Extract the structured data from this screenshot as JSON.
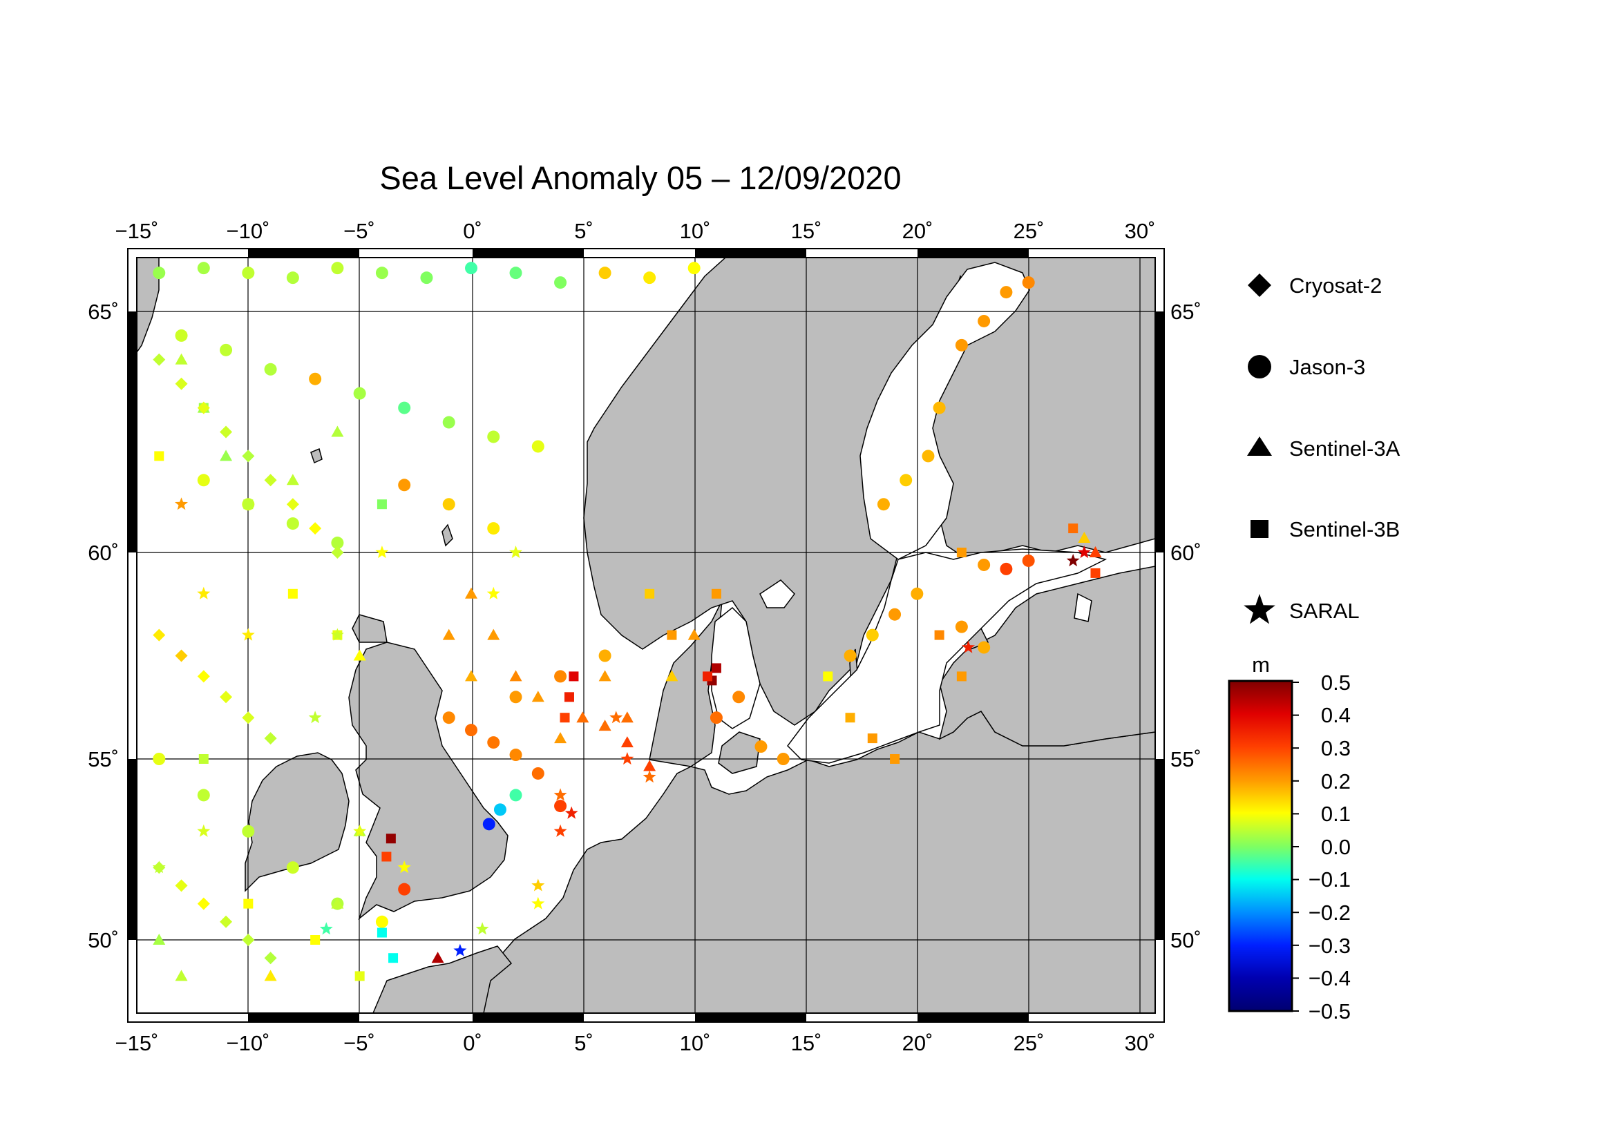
{
  "title": "Sea Level Anomaly 05 – 12/09/2020",
  "axes": {
    "lon_ticks": [
      "−15˚",
      "−10˚",
      "−5˚",
      "0˚",
      "5˚",
      "10˚",
      "15˚",
      "20˚",
      "25˚",
      "30˚"
    ],
    "lat_ticks": [
      "65˚",
      "60˚",
      "55˚",
      "50˚"
    ]
  },
  "legend": {
    "items": [
      {
        "label": "Cryosat-2",
        "symbol": "diamond"
      },
      {
        "label": "Jason-3",
        "symbol": "circle"
      },
      {
        "label": "Sentinel-3A",
        "symbol": "triangle"
      },
      {
        "label": "Sentinel-3B",
        "symbol": "square"
      },
      {
        "label": "SARAL",
        "symbol": "star"
      }
    ]
  },
  "colorbar": {
    "unit": "m",
    "labels": [
      "0.5",
      "0.4",
      "0.3",
      "0.2",
      "0.1",
      "0.0",
      "−0.1",
      "−0.2",
      "−0.3",
      "−0.4",
      "−0.5"
    ],
    "stops": [
      "#800000",
      "#e00000",
      "#ff5000",
      "#ffa000",
      "#ffff00",
      "#80ff80",
      "#00ffff",
      "#0080ff",
      "#0000e0",
      "#000080"
    ]
  },
  "colors": {
    "land": "#bdbdbd",
    "sea": "#ffffff",
    "grid": "#000000"
  },
  "chart_data": {
    "type": "scatter",
    "title": "Sea Level Anomaly 05 – 12/09/2020",
    "lon_range": [
      -15,
      30
    ],
    "lat_range": [
      48.3,
      66.3
    ],
    "value_unit": "m",
    "value_range": [
      -0.5,
      0.5
    ],
    "series": [
      {
        "name": "Jason-3",
        "symbol": "circle",
        "points": [
          [
            -14,
            65.8,
            0.02
          ],
          [
            -12,
            65.9,
            0.03
          ],
          [
            -10,
            65.8,
            0.05
          ],
          [
            -8,
            65.7,
            0.04
          ],
          [
            -6,
            65.9,
            0.05
          ],
          [
            -4,
            65.8,
            0.02
          ],
          [
            -2,
            65.7,
            0.0
          ],
          [
            0,
            65.9,
            -0.05
          ],
          [
            2,
            65.8,
            -0.02
          ],
          [
            4,
            65.6,
            0.0
          ],
          [
            6,
            65.8,
            0.15
          ],
          [
            8,
            65.7,
            0.12
          ],
          [
            10,
            65.9,
            0.1
          ],
          [
            -13,
            64.5,
            0.06
          ],
          [
            -11,
            64.2,
            0.05
          ],
          [
            -9,
            63.8,
            0.04
          ],
          [
            -7,
            63.6,
            0.18
          ],
          [
            -5,
            63.3,
            0.03
          ],
          [
            -3,
            63.0,
            -0.03
          ],
          [
            -1,
            62.7,
            0.02
          ],
          [
            1,
            62.4,
            0.05
          ],
          [
            3,
            62.2,
            0.08
          ],
          [
            -12,
            61.5,
            0.08
          ],
          [
            -10,
            61.0,
            0.06
          ],
          [
            -8,
            60.6,
            0.05
          ],
          [
            -6,
            60.2,
            0.04
          ],
          [
            -3,
            61.4,
            0.2
          ],
          [
            -1,
            61.0,
            0.15
          ],
          [
            1,
            60.5,
            0.12
          ],
          [
            -1,
            56.0,
            0.22
          ],
          [
            0,
            55.7,
            0.25
          ],
          [
            1,
            55.4,
            0.24
          ],
          [
            2,
            55.1,
            0.22
          ],
          [
            3,
            54.6,
            0.25
          ],
          [
            4,
            53.7,
            0.3
          ],
          [
            2,
            56.5,
            0.2
          ],
          [
            4,
            57.0,
            0.22
          ],
          [
            6,
            57.5,
            0.18
          ],
          [
            0.8,
            53.2,
            -0.3
          ],
          [
            1.3,
            53.6,
            -0.15
          ],
          [
            2,
            54.0,
            -0.05
          ],
          [
            11,
            56.0,
            0.25
          ],
          [
            12,
            56.5,
            0.22
          ],
          [
            13,
            55.3,
            0.2
          ],
          [
            14,
            55.0,
            0.2
          ],
          [
            17,
            57.5,
            0.18
          ],
          [
            18,
            58.0,
            0.15
          ],
          [
            19,
            58.5,
            0.2
          ],
          [
            20,
            59.0,
            0.18
          ],
          [
            22,
            58.2,
            0.2
          ],
          [
            23,
            57.7,
            0.18
          ],
          [
            18.5,
            61.0,
            0.18
          ],
          [
            19.5,
            61.5,
            0.15
          ],
          [
            20.5,
            62.0,
            0.17
          ],
          [
            21,
            63.0,
            0.17
          ],
          [
            22,
            64.3,
            0.2
          ],
          [
            23,
            64.8,
            0.2
          ],
          [
            24,
            65.4,
            0.2
          ],
          [
            25,
            65.6,
            0.22
          ],
          [
            23,
            59.7,
            0.2
          ],
          [
            24,
            59.6,
            0.3
          ],
          [
            25,
            59.8,
            0.28
          ],
          [
            -3,
            51.4,
            0.3
          ],
          [
            -4,
            50.5,
            0.1
          ],
          [
            -14,
            55,
            0.08
          ],
          [
            -12,
            54,
            0.05
          ],
          [
            -10,
            53,
            0.05
          ],
          [
            -8,
            52,
            0.06
          ],
          [
            -6,
            51,
            0.04
          ]
        ]
      },
      {
        "name": "Sentinel-3A",
        "symbol": "triangle",
        "points": [
          [
            -13,
            64,
            0.05
          ],
          [
            -12,
            63,
            0.03
          ],
          [
            -11,
            62,
            0.02
          ],
          [
            -8,
            61.5,
            0.05
          ],
          [
            -6,
            62.5,
            0.04
          ],
          [
            0,
            59,
            0.2
          ],
          [
            1,
            58,
            0.2
          ],
          [
            2,
            57,
            0.22
          ],
          [
            3,
            56.5,
            0.2
          ],
          [
            4,
            55.5,
            0.2
          ],
          [
            5,
            56,
            0.25
          ],
          [
            6,
            55.8,
            0.25
          ],
          [
            7,
            55.4,
            0.3
          ],
          [
            8,
            54.8,
            0.3
          ],
          [
            6,
            57,
            0.2
          ],
          [
            7,
            56,
            0.25
          ],
          [
            -1,
            58,
            0.2
          ],
          [
            0,
            57,
            0.18
          ],
          [
            10,
            58,
            0.2
          ],
          [
            9,
            57,
            0.15
          ],
          [
            28,
            60,
            0.3
          ],
          [
            27.5,
            60.3,
            0.15
          ],
          [
            -14,
            50,
            0.03
          ],
          [
            -13,
            49,
            0.05
          ],
          [
            -9,
            49,
            0.12
          ],
          [
            -6,
            51,
            0.05
          ],
          [
            -5,
            53,
            0.04
          ],
          [
            -5,
            57.5,
            0.1
          ],
          [
            -1.5,
            49.5,
            0.45
          ]
        ]
      },
      {
        "name": "Sentinel-3B",
        "symbol": "square",
        "points": [
          [
            -14,
            62,
            0.1
          ],
          [
            -12,
            63,
            0.02
          ],
          [
            -10,
            61,
            0.05
          ],
          [
            -8,
            59,
            0.1
          ],
          [
            -6,
            58,
            0.08
          ],
          [
            -4,
            61,
            0.0
          ],
          [
            4.6,
            57,
            0.4
          ],
          [
            4.4,
            56.5,
            0.35
          ],
          [
            4.2,
            56,
            0.3
          ],
          [
            11,
            57.2,
            0.45
          ],
          [
            10.8,
            56.9,
            0.48
          ],
          [
            10.6,
            57,
            0.35
          ],
          [
            9,
            58,
            0.2
          ],
          [
            11,
            59,
            0.2
          ],
          [
            8,
            59,
            0.15
          ],
          [
            16,
            57,
            0.1
          ],
          [
            17,
            56,
            0.18
          ],
          [
            18,
            55.5,
            0.2
          ],
          [
            19,
            55,
            0.2
          ],
          [
            22,
            57,
            0.2
          ],
          [
            21,
            58,
            0.22
          ],
          [
            27,
            60.5,
            0.25
          ],
          [
            28,
            59.5,
            0.3
          ],
          [
            22,
            60,
            0.2
          ],
          [
            -3.6,
            52.8,
            0.48
          ],
          [
            -3.8,
            52.3,
            0.3
          ],
          [
            -4,
            50.2,
            -0.1
          ],
          [
            -3.5,
            49.5,
            -0.1
          ],
          [
            -12,
            55,
            0.05
          ],
          [
            -10,
            51,
            0.1
          ],
          [
            -7,
            50,
            0.1
          ],
          [
            -5,
            49,
            0.08
          ]
        ]
      },
      {
        "name": "SARAL",
        "symbol": "star",
        "points": [
          [
            -13,
            61,
            0.2
          ],
          [
            -12,
            59,
            0.12
          ],
          [
            -10,
            58,
            0.12
          ],
          [
            -7,
            56,
            0.05
          ],
          [
            -5,
            53,
            0.08
          ],
          [
            -3,
            52,
            0.1
          ],
          [
            4,
            54,
            0.25
          ],
          [
            4.5,
            53.5,
            0.35
          ],
          [
            4,
            53,
            0.3
          ],
          [
            3,
            51.5,
            0.15
          ],
          [
            3,
            51,
            0.1
          ],
          [
            7,
            55,
            0.3
          ],
          [
            8,
            54.5,
            0.25
          ],
          [
            6.5,
            56,
            0.25
          ],
          [
            -0.5,
            49.7,
            -0.3
          ],
          [
            0.5,
            50.3,
            0.05
          ],
          [
            -6.5,
            50.3,
            -0.05
          ],
          [
            22.3,
            57.7,
            0.35
          ],
          [
            27,
            59.8,
            0.5
          ],
          [
            27.5,
            60,
            0.4
          ],
          [
            1,
            59,
            0.1
          ],
          [
            2,
            60,
            0.08
          ],
          [
            -6,
            58,
            0.06
          ],
          [
            -4,
            60,
            0.1
          ],
          [
            -14,
            52,
            0.05
          ],
          [
            -12,
            53,
            0.07
          ]
        ]
      },
      {
        "name": "Cryosat-2",
        "symbol": "diamond",
        "points": [
          [
            -14,
            64,
            0.05
          ],
          [
            -13,
            63.5,
            0.07
          ],
          [
            -12,
            63,
            0.08
          ],
          [
            -11,
            62.5,
            0.06
          ],
          [
            -10,
            62,
            0.04
          ],
          [
            -9,
            61.5,
            0.06
          ],
          [
            -8,
            61,
            0.08
          ],
          [
            -7,
            60.5,
            0.1
          ],
          [
            -6,
            60,
            0.05
          ],
          [
            -14,
            58,
            0.12
          ],
          [
            -13,
            57.5,
            0.15
          ],
          [
            -12,
            57,
            0.1
          ],
          [
            -11,
            56.5,
            0.08
          ],
          [
            -10,
            56,
            0.07
          ],
          [
            -9,
            55.5,
            0.05
          ],
          [
            -14,
            52,
            0.05
          ],
          [
            -13,
            51.5,
            0.08
          ],
          [
            -12,
            51,
            0.1
          ],
          [
            -11,
            50.5,
            0.06
          ],
          [
            -10,
            50,
            0.05
          ],
          [
            -9,
            49.5,
            0.04
          ]
        ]
      }
    ]
  }
}
